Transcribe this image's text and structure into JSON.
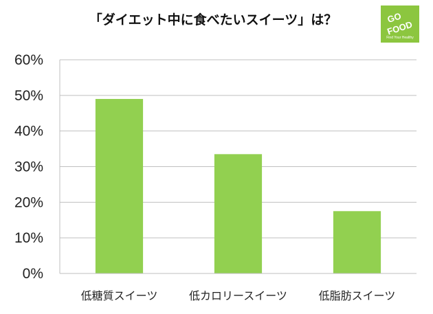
{
  "logo": {
    "line1": "GO",
    "line2": "FOOD",
    "tagline": "Find Your Healthy",
    "color": "#8cc63f"
  },
  "chart_data": {
    "type": "bar",
    "title": "「ダイエット中に食べたいスイーツ」は？",
    "categories": [
      "低糖質スイーツ",
      "低カロリースイーツ",
      "低脂肪スイーツ"
    ],
    "values": [
      49,
      33.5,
      17.5
    ],
    "unit": "%",
    "ylim": [
      0,
      60
    ],
    "yticks": [
      "0%",
      "10%",
      "20%",
      "30%",
      "40%",
      "50%",
      "60%"
    ],
    "grid": true,
    "legend": "none",
    "bar_color": "#92d050",
    "grid_color": "#bfbfbf"
  }
}
